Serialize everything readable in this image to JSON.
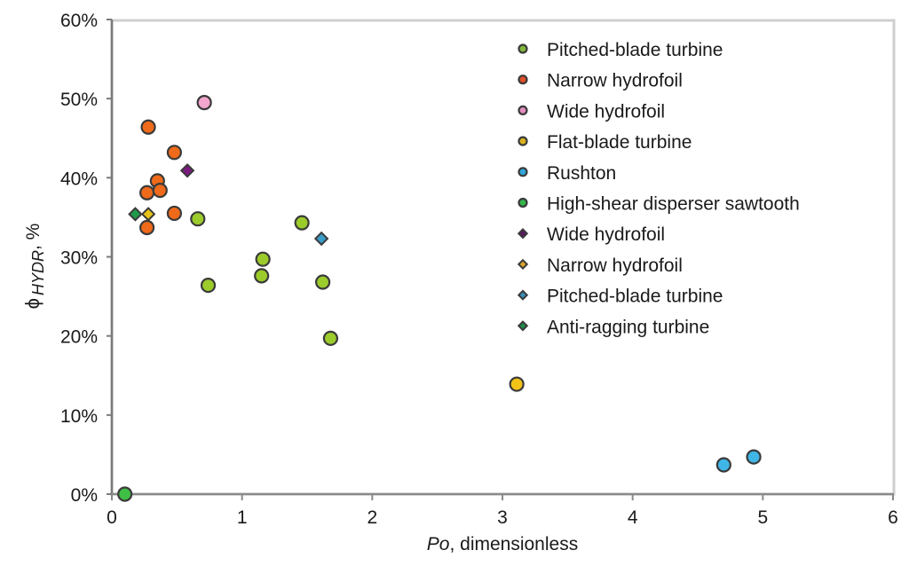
{
  "chart_data": {
    "type": "scatter",
    "title": "",
    "xlabel": "Po, dimensionless",
    "xlabel_parts": {
      "italic": "Po",
      "rest": ", dimensionless"
    },
    "ylabel": "ϕ HYDR, %",
    "ylabel_parts": {
      "symbol": "ϕ",
      "subscript": "HYDR",
      "rest": ", %"
    },
    "xlim": [
      0,
      6
    ],
    "ylim": [
      0,
      60
    ],
    "x_ticks": [
      0,
      1,
      2,
      3,
      4,
      5,
      6
    ],
    "x_tick_labels": [
      "0",
      "1",
      "2",
      "3",
      "4",
      "5",
      "6"
    ],
    "y_ticks": [
      0,
      10,
      20,
      30,
      40,
      50,
      60
    ],
    "y_tick_labels": [
      "0%",
      "10%",
      "20%",
      "30%",
      "40%",
      "50%",
      "60%"
    ],
    "grid": false,
    "legend_position": "upper-right-inside",
    "series": [
      {
        "name": "Pitched-blade turbine",
        "marker": "circle",
        "color": "#9ccb2c",
        "points": [
          [
            0.66,
            34.8
          ],
          [
            0.74,
            26.4
          ],
          [
            1.16,
            29.7
          ],
          [
            1.15,
            27.6
          ],
          [
            1.46,
            34.3
          ],
          [
            1.62,
            26.8
          ],
          [
            1.68,
            19.7
          ]
        ]
      },
      {
        "name": "Narrow hydrofoil",
        "marker": "circle",
        "color": "#ef6a1a",
        "points": [
          [
            0.28,
            46.4
          ],
          [
            0.48,
            43.2
          ],
          [
            0.35,
            39.6
          ],
          [
            0.27,
            38.1
          ],
          [
            0.37,
            38.4
          ],
          [
            0.48,
            35.5
          ],
          [
            0.27,
            33.7
          ]
        ]
      },
      {
        "name": "Wide hydrofoil",
        "marker": "circle",
        "color": "#f2a6cf",
        "points": [
          [
            0.71,
            49.5
          ]
        ]
      },
      {
        "name": "Flat-blade turbine",
        "marker": "circle",
        "color": "#f3c318",
        "points": [
          [
            3.11,
            13.9
          ]
        ]
      },
      {
        "name": "Rushton",
        "marker": "circle",
        "color": "#3fb6e6",
        "points": [
          [
            4.7,
            3.7
          ],
          [
            4.93,
            4.7
          ]
        ]
      },
      {
        "name": "High-shear disperser sawtooth",
        "marker": "circle",
        "color": "#3fbf45",
        "points": [
          [
            0.1,
            0.0
          ]
        ]
      },
      {
        "name": "Wide hydrofoil",
        "marker": "diamond",
        "color": "#7a1a7e",
        "points": [
          [
            0.58,
            40.9
          ]
        ]
      },
      {
        "name": "Narrow hydrofoil",
        "marker": "diamond",
        "color": "#e6c21a",
        "points": [
          [
            0.28,
            35.4
          ]
        ]
      },
      {
        "name": "Pitched-blade turbine",
        "marker": "diamond",
        "color": "#3a9cc8",
        "points": [
          [
            1.61,
            32.3
          ]
        ]
      },
      {
        "name": "Anti-ragging turbine",
        "marker": "diamond",
        "color": "#1f9a4a",
        "points": [
          [
            0.18,
            35.4
          ]
        ]
      }
    ]
  },
  "legend": {
    "items": [
      {
        "label": "Pitched-blade turbine",
        "marker": "circle",
        "color": "#7fb83a"
      },
      {
        "label": "Narrow hydrofoil",
        "marker": "circle",
        "color": "#e0502a"
      },
      {
        "label": "Wide hydrofoil",
        "marker": "circle",
        "color": "#e58cc0"
      },
      {
        "label": "Flat-blade turbine",
        "marker": "circle",
        "color": "#d9b21e"
      },
      {
        "label": "Rushton",
        "marker": "circle",
        "color": "#2fa7d8"
      },
      {
        "label": "High-shear disperser sawtooth",
        "marker": "circle",
        "color": "#33b54a"
      },
      {
        "label": "Wide hydrofoil",
        "marker": "diamond",
        "color": "#5a1a5e"
      },
      {
        "label": "Narrow hydrofoil",
        "marker": "diamond",
        "color": "#d9a52a"
      },
      {
        "label": "Pitched-blade turbine",
        "marker": "diamond",
        "color": "#3a8fb5"
      },
      {
        "label": "Anti-ragging turbine",
        "marker": "diamond",
        "color": "#1e8a4a"
      }
    ]
  },
  "colors": {
    "frame": "#c8c8c8",
    "axis": "#7a7a7a",
    "marker_outline": "#3a3a3a",
    "text": "#1a1a1a"
  }
}
